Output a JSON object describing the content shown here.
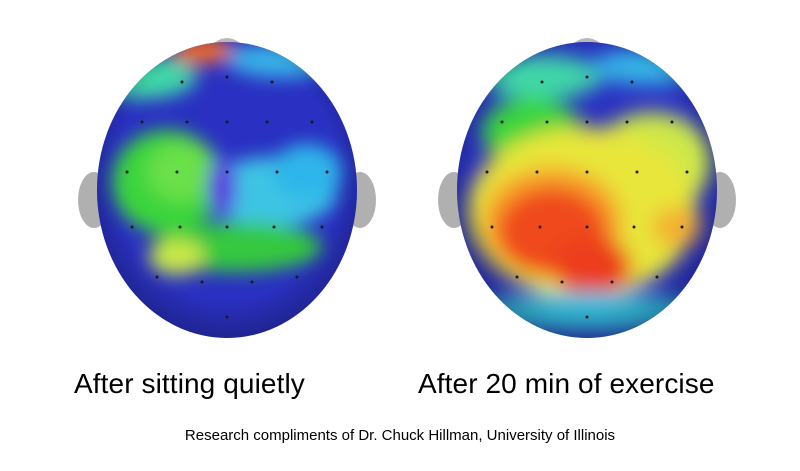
{
  "captions": {
    "left": "After sitting quietly",
    "right": "After 20 min of exercise"
  },
  "credit": "Research compliments of Dr. Chuck Hillman, University of Illinois",
  "colors": {
    "background": "#ffffff",
    "cold": "#2a34c8",
    "cool": "#38b8e8",
    "mid": "#39d23a",
    "warm": "#e8e63a",
    "hot": "#f04a1e",
    "ear": "#a8a8a8",
    "text": "#000000"
  },
  "images": {
    "left": "brain-activity-scan-resting",
    "right": "brain-activity-scan-after-exercise"
  }
}
